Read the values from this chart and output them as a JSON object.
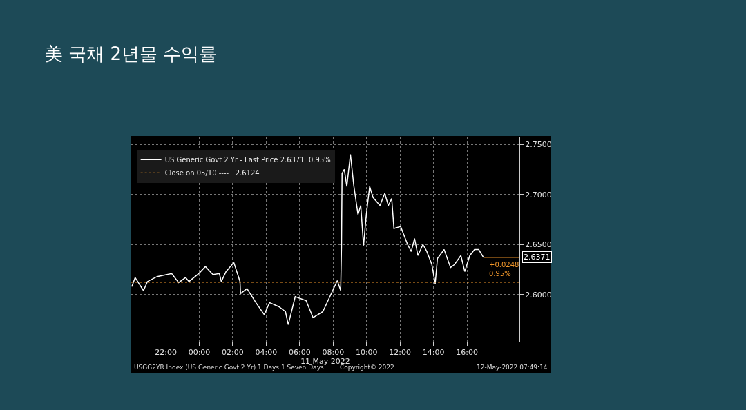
{
  "chart_data": {
    "type": "line",
    "title": "美 국채 2년물 수익률",
    "xlabel": "11 May 2022",
    "x": [
      "2022-05-10T19:58",
      "2022-05-10T20:10",
      "2022-05-10T20:40",
      "2022-05-10T20:54",
      "2022-05-10T21:29",
      "2022-05-10T22:21",
      "2022-05-10T22:46",
      "2022-05-10T23:11",
      "2022-05-10T23:23",
      "2022-05-10T23:58",
      "2022-05-11T00:22",
      "2022-05-11T00:49",
      "2022-05-11T01:12",
      "2022-05-11T01:19",
      "2022-05-11T01:36",
      "2022-05-11T02:04",
      "2022-05-11T02:26",
      "2022-05-11T02:28",
      "2022-05-11T02:51",
      "2022-05-11T03:23",
      "2022-05-11T03:53",
      "2022-05-11T04:12",
      "2022-05-11T04:45",
      "2022-05-11T05:09",
      "2022-05-11T05:19",
      "2022-05-11T05:44",
      "2022-05-11T06:23",
      "2022-05-11T06:48",
      "2022-05-11T07:23",
      "2022-05-11T07:50",
      "2022-05-11T08:15",
      "2022-05-11T08:27",
      "2022-05-11T08:30",
      "2022-05-11T08:32",
      "2022-05-11T08:40",
      "2022-05-11T08:49",
      "2022-05-11T09:02",
      "2022-05-11T09:14",
      "2022-05-11T09:29",
      "2022-05-11T09:39",
      "2022-05-11T09:49",
      "2022-05-11T09:59",
      "2022-05-11T10:11",
      "2022-05-11T10:23",
      "2022-05-11T10:48",
      "2022-05-11T11:05",
      "2022-05-11T11:18",
      "2022-05-11T11:30",
      "2022-05-11T11:38",
      "2022-05-11T12:02",
      "2022-05-11T12:27",
      "2022-05-11T12:40",
      "2022-05-11T12:52",
      "2022-05-11T13:04",
      "2022-05-11T13:22",
      "2022-05-11T13:36",
      "2022-05-11T13:54",
      "2022-05-11T14:06",
      "2022-05-11T14:14",
      "2022-05-11T14:38",
      "2022-05-11T15:01",
      "2022-05-11T15:15",
      "2022-05-11T15:38",
      "2022-05-11T15:52",
      "2022-05-11T16:10",
      "2022-05-11T16:27",
      "2022-05-11T16:42",
      "2022-05-11T16:59"
    ],
    "series": [
      {
        "name": "US Generic Govt 2 Yr - Last Price 2.6371  0.95%",
        "color": "#ffffff",
        "values": [
          2.608,
          2.617,
          2.604,
          2.613,
          2.618,
          2.621,
          2.612,
          2.617,
          2.613,
          2.621,
          2.628,
          2.62,
          2.621,
          2.613,
          2.623,
          2.632,
          2.613,
          2.601,
          2.606,
          2.592,
          2.58,
          2.592,
          2.588,
          2.583,
          2.57,
          2.598,
          2.594,
          2.577,
          2.583,
          2.599,
          2.614,
          2.604,
          2.6475,
          2.721,
          2.725,
          2.708,
          2.74,
          2.709,
          2.68,
          2.689,
          2.649,
          2.68,
          2.708,
          2.697,
          2.689,
          2.701,
          2.689,
          2.696,
          2.666,
          2.668,
          2.65,
          2.643,
          2.656,
          2.639,
          2.65,
          2.643,
          2.63,
          2.611,
          2.636,
          2.645,
          2.627,
          2.63,
          2.639,
          2.623,
          2.639,
          2.645,
          2.645,
          2.6371
        ]
      }
    ],
    "ref_lines": [
      {
        "axis": "y",
        "value": 2.6124,
        "label": "Close on 05/10 ----   2.6124",
        "color": "#f0962a",
        "line_style": "dotted"
      }
    ],
    "xlim": [
      "2022-05-10T19:56",
      "2022-05-11T19:08"
    ],
    "xticks": [
      {
        "value": "2022-05-10T22:00",
        "label": "22:00"
      },
      {
        "value": "2022-05-11T00:00",
        "label": "00:00"
      },
      {
        "value": "2022-05-11T02:00",
        "label": "02:00"
      },
      {
        "value": "2022-05-11T04:00",
        "label": "04:00"
      },
      {
        "value": "2022-05-11T06:00",
        "label": "06:00"
      },
      {
        "value": "2022-05-11T08:00",
        "label": "08:00"
      },
      {
        "value": "2022-05-11T10:00",
        "label": "10:00"
      },
      {
        "value": "2022-05-11T12:00",
        "label": "12:00"
      },
      {
        "value": "2022-05-11T14:00",
        "label": "14:00"
      },
      {
        "value": "2022-05-11T16:00",
        "label": "16:00"
      }
    ],
    "ylim": [
      2.553,
      2.757
    ],
    "yticks": [
      {
        "value": 2.6,
        "label": "2.6000"
      },
      {
        "value": 2.65,
        "label": "2.6500"
      },
      {
        "value": 2.7,
        "label": "2.7000"
      },
      {
        "value": 2.75,
        "label": "2.7500"
      }
    ],
    "grid": true,
    "legend": "top left",
    "marker": "none",
    "line_style": "solid",
    "annotations": [
      "USGG2YR Index (US Generic Govt 2 Yr) 1 Days 1 Seven Days",
      "Copyright© 2022",
      "12-May-2022 07:49:14",
      {
        "text": "2.6371",
        "x": "2022-05-11T16:59",
        "y": 2.6371
      },
      {
        "text": "+0.0248\n0.95%",
        "x": "2022-05-11T16:59",
        "y": 2.6371
      }
    ]
  }
}
